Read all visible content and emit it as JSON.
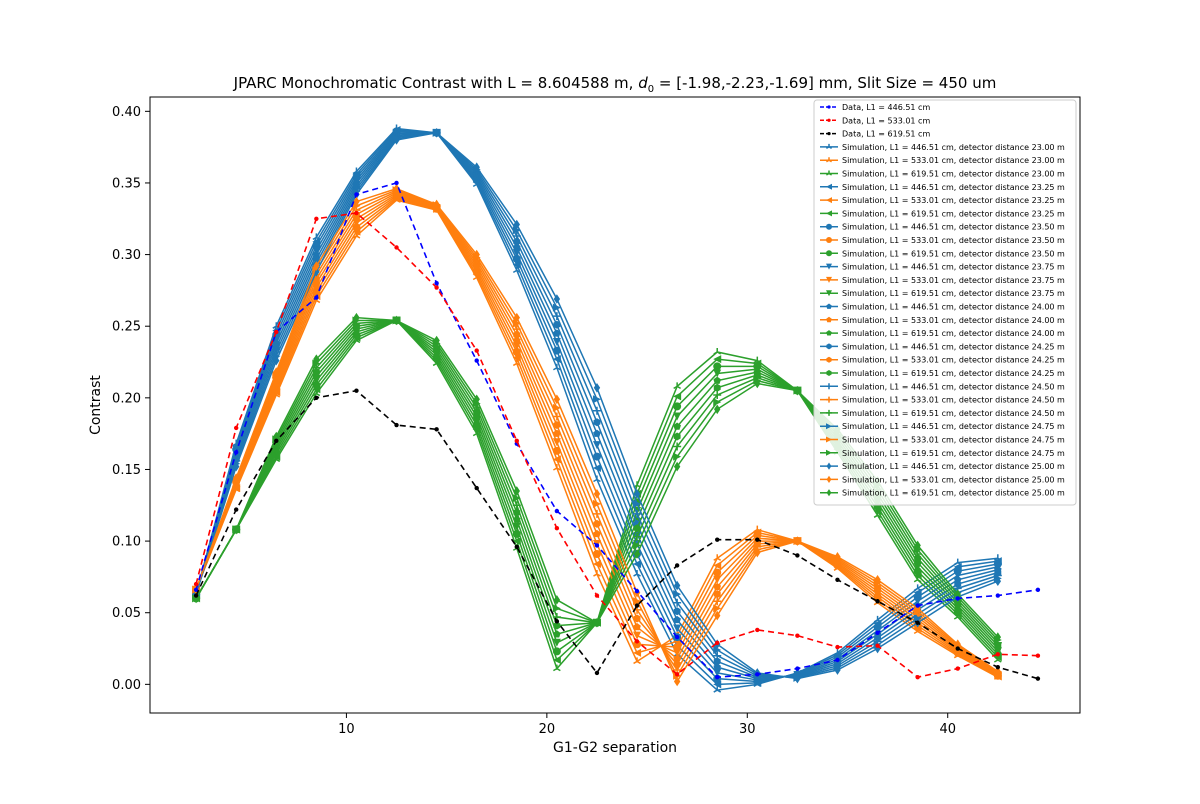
{
  "chart_data": {
    "type": "line",
    "title_parts": {
      "pre": "JPARC Monochromatic Contrast with L = 8.604588 m, ",
      "sym": "d",
      "sub": "0",
      "post": " = [-1.98,-2.23,-1.69] mm, Slit Size = 450 um"
    },
    "xlabel": "G1-G2 separation",
    "ylabel": "Contrast",
    "xlim": [
      0.2,
      46.6
    ],
    "ylim": [
      -0.02,
      0.41
    ],
    "xticks": [
      10,
      20,
      30,
      40
    ],
    "yticks": [
      0.0,
      0.05,
      0.1,
      0.15,
      0.2,
      0.25,
      0.3,
      0.35,
      0.4
    ],
    "ytick_labels": [
      "0.00",
      "0.05",
      "0.10",
      "0.15",
      "0.20",
      "0.25",
      "0.30",
      "0.35",
      "0.40"
    ],
    "grid": false,
    "legend_position": "top-right",
    "colors": {
      "data_blue": "#0000ff",
      "data_red": "#ff0000",
      "data_black": "#000000",
      "sim_blue": "#1f77b4",
      "sim_orange": "#ff7f0e",
      "sim_green": "#2ca02c"
    },
    "data_series": [
      {
        "name": "Data, L1 = 446.51 cm",
        "color": "#0000ff",
        "x": [
          2.5,
          4.5,
          6.5,
          8.5,
          10.5,
          12.5,
          14.5,
          16.5,
          18.5,
          20.5,
          22.5,
          24.5,
          26.5,
          28.5,
          30.5,
          32.5,
          34.5,
          36.5,
          38.5,
          40.5,
          42.5,
          44.5
        ],
        "y": [
          0.066,
          0.162,
          0.246,
          0.27,
          0.342,
          0.35,
          0.28,
          0.226,
          0.168,
          0.121,
          0.097,
          0.065,
          0.033,
          0.005,
          0.007,
          0.011,
          0.017,
          0.036,
          0.055,
          0.06,
          0.062,
          0.066
        ]
      },
      {
        "name": "Data, L1 = 533.01 cm",
        "color": "#ff0000",
        "x": [
          2.5,
          4.5,
          6.5,
          8.5,
          10.5,
          12.5,
          14.5,
          16.5,
          18.5,
          20.5,
          22.5,
          24.5,
          26.5,
          28.5,
          30.5,
          32.5,
          34.5,
          36.5,
          38.5,
          40.5,
          42.5,
          44.5
        ],
        "y": [
          0.07,
          0.179,
          0.246,
          0.325,
          0.329,
          0.305,
          0.277,
          0.233,
          0.17,
          0.109,
          0.062,
          0.03,
          0.007,
          0.029,
          0.038,
          0.034,
          0.026,
          0.027,
          0.005,
          0.011,
          0.021,
          0.02
        ]
      },
      {
        "name": "Data, L1 = 619.51 cm",
        "color": "#000000",
        "x": [
          2.5,
          4.5,
          6.5,
          8.5,
          10.5,
          12.5,
          14.5,
          16.5,
          18.5,
          20.5,
          22.5,
          24.5,
          26.5,
          28.5,
          30.5,
          32.5,
          34.5,
          36.5,
          38.5,
          40.5,
          42.5,
          44.5
        ],
        "y": [
          0.062,
          0.122,
          0.17,
          0.2,
          0.205,
          0.181,
          0.178,
          0.137,
          0.096,
          0.044,
          0.008,
          0.055,
          0.083,
          0.101,
          0.101,
          0.09,
          0.073,
          0.058,
          0.043,
          0.025,
          0.012,
          0.004
        ]
      }
    ],
    "sim_x": [
      2.5,
      4.5,
      6.5,
      8.5,
      10.5,
      12.5,
      14.5,
      16.5,
      18.5,
      20.5,
      22.5,
      24.5,
      26.5,
      28.5,
      30.5,
      32.5,
      34.5,
      36.5,
      38.5,
      40.5,
      42.5
    ],
    "sim_groups": [
      {
        "color": "#1f77b4",
        "base": [
          0.063,
          0.16,
          0.238,
          0.3,
          0.35,
          0.384,
          0.385,
          0.355,
          0.305,
          0.245,
          0.175,
          0.105,
          0.045,
          0.012,
          0.004,
          0.006,
          0.016,
          0.035,
          0.055,
          0.073,
          0.08
        ],
        "slope": [
          0.0,
          -0.002,
          -0.003,
          -0.003,
          -0.002,
          -0.001,
          0.0,
          0.0015,
          0.004,
          0.006,
          0.008,
          0.007,
          0.006,
          0.004,
          0.001,
          -0.0005,
          -0.0015,
          -0.0025,
          -0.003,
          -0.003,
          -0.002
        ]
      },
      {
        "color": "#ff7f0e",
        "base": [
          0.066,
          0.14,
          0.21,
          0.28,
          0.325,
          0.342,
          0.333,
          0.292,
          0.24,
          0.175,
          0.105,
          0.04,
          0.018,
          0.068,
          0.1,
          0.1,
          0.085,
          0.065,
          0.045,
          0.024,
          0.007
        ],
        "slope": [
          0.0,
          0.001,
          0.002,
          0.003,
          0.003,
          0.001,
          0.0005,
          0.002,
          0.004,
          0.006,
          0.007,
          0.006,
          -0.004,
          -0.005,
          -0.002,
          0.0,
          0.001,
          0.002,
          0.002,
          0.001,
          0.0005
        ]
      },
      {
        "color": "#2ca02c",
        "base": [
          0.06,
          0.108,
          0.165,
          0.215,
          0.248,
          0.254,
          0.232,
          0.187,
          0.115,
          0.035,
          0.043,
          0.115,
          0.18,
          0.212,
          0.218,
          0.205,
          0.17,
          0.13,
          0.085,
          0.055,
          0.025
        ],
        "slope": [
          0.0,
          0.0,
          0.002,
          0.003,
          0.002,
          0.0,
          0.002,
          0.003,
          0.005,
          0.006,
          0.0,
          -0.006,
          -0.007,
          -0.005,
          -0.002,
          0.0,
          0.002,
          0.003,
          0.003,
          0.002,
          0.002
        ]
      }
    ],
    "legend_entries": [
      {
        "label": "Data, L1 = 446.51 cm",
        "color": "#0000ff",
        "kind": "data",
        "marker": "dot"
      },
      {
        "label": "Data, L1 = 533.01 cm",
        "color": "#ff0000",
        "kind": "data",
        "marker": "dot"
      },
      {
        "label": "Data, L1 = 619.51 cm",
        "color": "#000000",
        "kind": "data",
        "marker": "dot"
      },
      {
        "label": "Simulation, L1 = 446.51 cm, detector distance 23.00 m",
        "color": "#1f77b4",
        "kind": "sim",
        "marker": "tri_down"
      },
      {
        "label": "Simulation, L1 = 533.01 cm, detector distance 23.00 m",
        "color": "#ff7f0e",
        "kind": "sim",
        "marker": "tri_down"
      },
      {
        "label": "Simulation, L1 = 619.51 cm, detector distance 23.00 m",
        "color": "#2ca02c",
        "kind": "sim",
        "marker": "tri_down"
      },
      {
        "label": "Simulation, L1 = 446.51 cm, detector distance 23.25 m",
        "color": "#1f77b4",
        "kind": "sim",
        "marker": "triangle_left"
      },
      {
        "label": "Simulation, L1 = 533.01 cm, detector distance 23.25 m",
        "color": "#ff7f0e",
        "kind": "sim",
        "marker": "triangle_left"
      },
      {
        "label": "Simulation, L1 = 619.51 cm, detector distance 23.25 m",
        "color": "#2ca02c",
        "kind": "sim",
        "marker": "triangle_left"
      },
      {
        "label": "Simulation, L1 = 446.51 cm, detector distance 23.50 m",
        "color": "#1f77b4",
        "kind": "sim",
        "marker": "circle"
      },
      {
        "label": "Simulation, L1 = 533.01 cm, detector distance 23.50 m",
        "color": "#ff7f0e",
        "kind": "sim",
        "marker": "circle"
      },
      {
        "label": "Simulation, L1 = 619.51 cm, detector distance 23.50 m",
        "color": "#2ca02c",
        "kind": "sim",
        "marker": "circle"
      },
      {
        "label": "Simulation, L1 = 446.51 cm, detector distance 23.75 m",
        "color": "#1f77b4",
        "kind": "sim",
        "marker": "triangle_down"
      },
      {
        "label": "Simulation, L1 = 533.01 cm, detector distance 23.75 m",
        "color": "#ff7f0e",
        "kind": "sim",
        "marker": "triangle_down"
      },
      {
        "label": "Simulation, L1 = 619.51 cm, detector distance 23.75 m",
        "color": "#2ca02c",
        "kind": "sim",
        "marker": "triangle_down"
      },
      {
        "label": "Simulation, L1 = 446.51 cm, detector distance 24.00 m",
        "color": "#1f77b4",
        "kind": "sim",
        "marker": "pentagon"
      },
      {
        "label": "Simulation, L1 = 533.01 cm, detector distance 24.00 m",
        "color": "#ff7f0e",
        "kind": "sim",
        "marker": "pentagon"
      },
      {
        "label": "Simulation, L1 = 619.51 cm, detector distance 24.00 m",
        "color": "#2ca02c",
        "kind": "sim",
        "marker": "pentagon"
      },
      {
        "label": "Simulation, L1 = 446.51 cm, detector distance 24.25 m",
        "color": "#1f77b4",
        "kind": "sim",
        "marker": "hexagon"
      },
      {
        "label": "Simulation, L1 = 533.01 cm, detector distance 24.25 m",
        "color": "#ff7f0e",
        "kind": "sim",
        "marker": "hexagon"
      },
      {
        "label": "Simulation, L1 = 619.51 cm, detector distance 24.25 m",
        "color": "#2ca02c",
        "kind": "sim",
        "marker": "hexagon"
      },
      {
        "label": "Simulation, L1 = 446.51 cm, detector distance 24.50 m",
        "color": "#1f77b4",
        "kind": "sim",
        "marker": "plus"
      },
      {
        "label": "Simulation, L1 = 533.01 cm, detector distance 24.50 m",
        "color": "#ff7f0e",
        "kind": "sim",
        "marker": "plus"
      },
      {
        "label": "Simulation, L1 = 619.51 cm, detector distance 24.50 m",
        "color": "#2ca02c",
        "kind": "sim",
        "marker": "plus"
      },
      {
        "label": "Simulation, L1 = 446.51 cm, detector distance 24.75 m",
        "color": "#1f77b4",
        "kind": "sim",
        "marker": "triangle_right"
      },
      {
        "label": "Simulation, L1 = 533.01 cm, detector distance 24.75 m",
        "color": "#ff7f0e",
        "kind": "sim",
        "marker": "triangle_right"
      },
      {
        "label": "Simulation, L1 = 619.51 cm, detector distance 24.75 m",
        "color": "#2ca02c",
        "kind": "sim",
        "marker": "triangle_right"
      },
      {
        "label": "Simulation, L1 = 446.51 cm, detector distance 25.00 m",
        "color": "#1f77b4",
        "kind": "sim",
        "marker": "diamond"
      },
      {
        "label": "Simulation, L1 = 533.01 cm, detector distance 25.00 m",
        "color": "#ff7f0e",
        "kind": "sim",
        "marker": "diamond"
      },
      {
        "label": "Simulation, L1 = 619.51 cm, detector distance 25.00 m",
        "color": "#2ca02c",
        "kind": "sim",
        "marker": "diamond"
      }
    ]
  }
}
